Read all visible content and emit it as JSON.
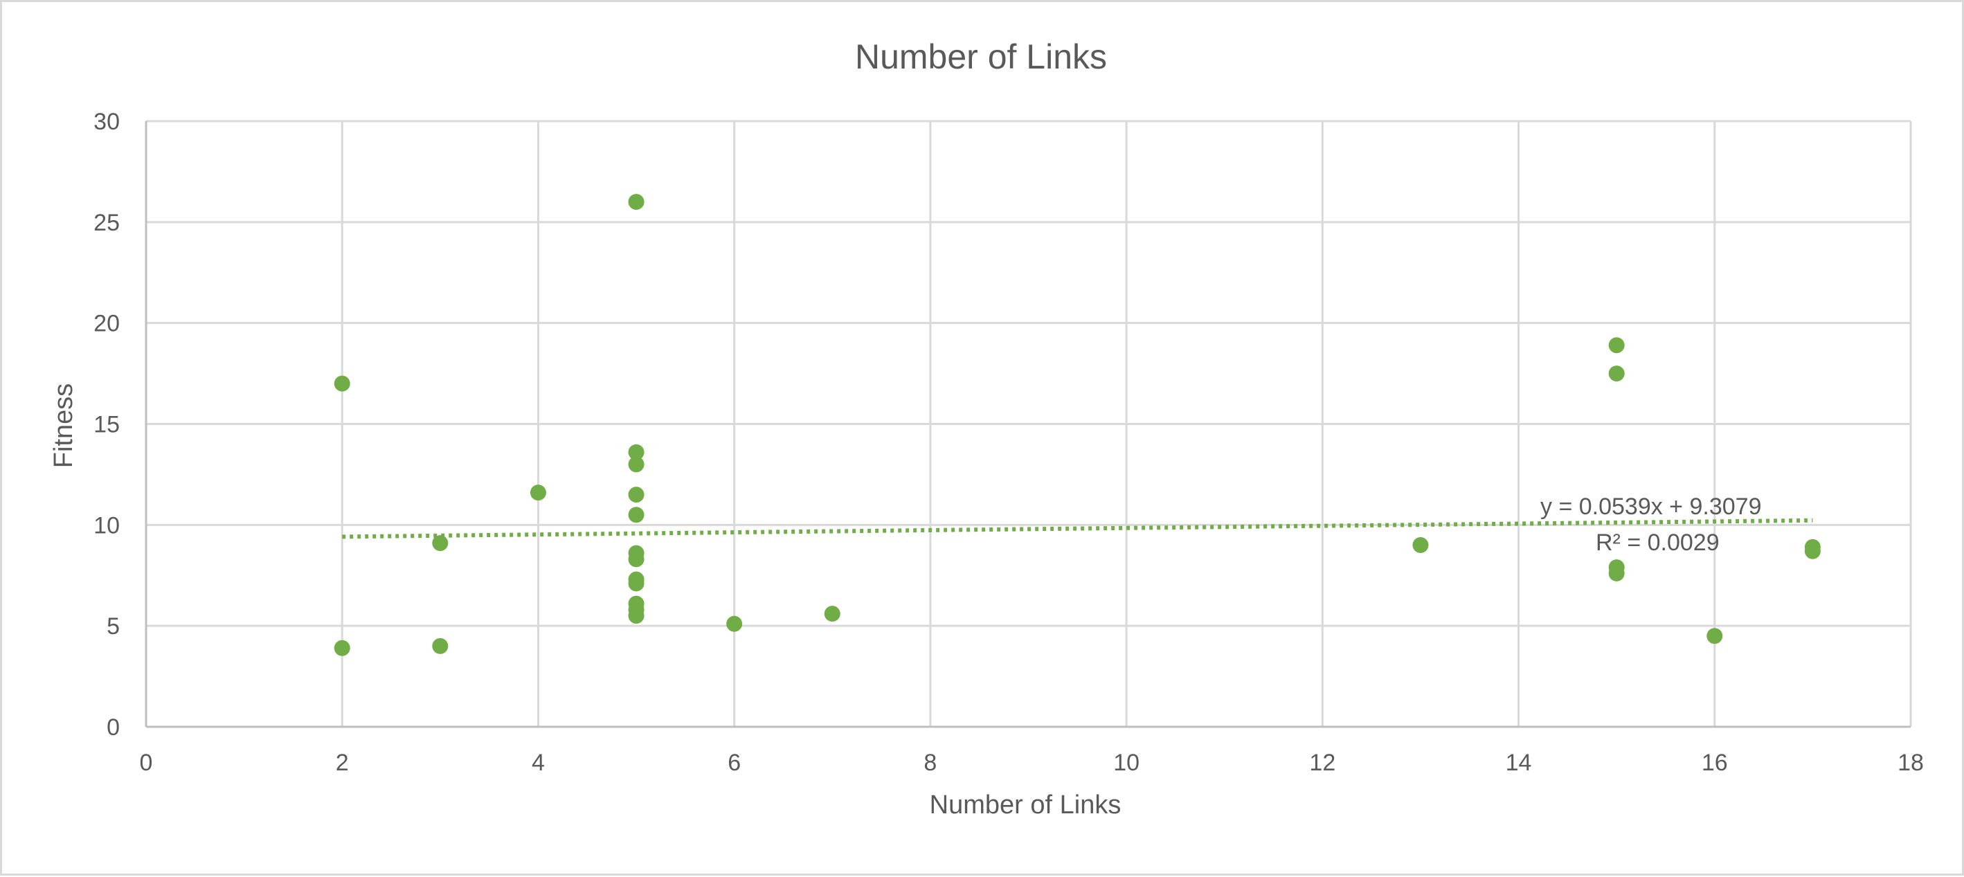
{
  "chart_data": {
    "type": "scatter",
    "title": "Number of Links",
    "xlabel": "Number of Links",
    "ylabel": "Fitness",
    "xlim": [
      0,
      18
    ],
    "ylim": [
      0,
      30
    ],
    "x_ticks": [
      0,
      2,
      4,
      6,
      8,
      10,
      12,
      14,
      16,
      18
    ],
    "y_ticks": [
      0,
      5,
      10,
      15,
      20,
      25,
      30
    ],
    "grid": true,
    "legend": "none",
    "series": [
      {
        "color": "#70ad47",
        "points": [
          {
            "x": 2,
            "y": 17.0
          },
          {
            "x": 2,
            "y": 3.9
          },
          {
            "x": 3,
            "y": 9.1
          },
          {
            "x": 3,
            "y": 4.0
          },
          {
            "x": 4,
            "y": 11.6
          },
          {
            "x": 5,
            "y": 26.0
          },
          {
            "x": 5,
            "y": 13.6
          },
          {
            "x": 5,
            "y": 13.0
          },
          {
            "x": 5,
            "y": 11.5
          },
          {
            "x": 5,
            "y": 10.5
          },
          {
            "x": 5,
            "y": 8.6
          },
          {
            "x": 5,
            "y": 8.3
          },
          {
            "x": 5,
            "y": 7.3
          },
          {
            "x": 5,
            "y": 7.1
          },
          {
            "x": 5,
            "y": 6.1
          },
          {
            "x": 5,
            "y": 5.8
          },
          {
            "x": 5,
            "y": 5.5
          },
          {
            "x": 6,
            "y": 5.1
          },
          {
            "x": 7,
            "y": 5.6
          },
          {
            "x": 13,
            "y": 9.0
          },
          {
            "x": 15,
            "y": 18.9
          },
          {
            "x": 15,
            "y": 17.5
          },
          {
            "x": 15,
            "y": 7.9
          },
          {
            "x": 15,
            "y": 7.6
          },
          {
            "x": 16,
            "y": 4.5
          },
          {
            "x": 17,
            "y": 8.9
          },
          {
            "x": 17,
            "y": 8.7
          }
        ]
      }
    ],
    "trendline": {
      "type": "linear",
      "slope": 0.0539,
      "intercept": 9.3079,
      "x_range": [
        2,
        17
      ],
      "color": "#70ad47",
      "style": "dotted",
      "equation_label": "y = 0.0539x + 9.3079",
      "r2_label": "R² = 0.0029"
    },
    "colors": {
      "gridline": "#d9d9d9",
      "text": "#595959",
      "marker": "#70ad47"
    }
  }
}
